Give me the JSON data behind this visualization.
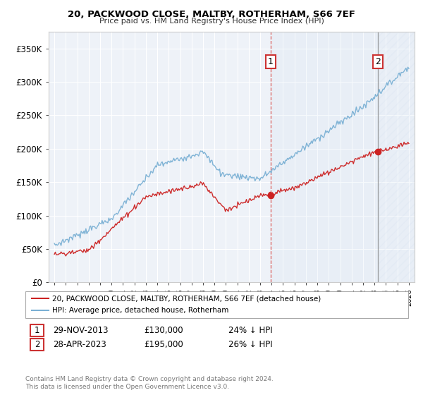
{
  "title": "20, PACKWOOD CLOSE, MALTBY, ROTHERHAM, S66 7EF",
  "subtitle": "Price paid vs. HM Land Registry's House Price Index (HPI)",
  "legend_line1": "20, PACKWOOD CLOSE, MALTBY, ROTHERHAM, S66 7EF (detached house)",
  "legend_line2": "HPI: Average price, detached house, Rotherham",
  "annotation1_date": "29-NOV-2013",
  "annotation1_price": "£130,000",
  "annotation1_hpi": "24% ↓ HPI",
  "annotation2_date": "28-APR-2023",
  "annotation2_price": "£195,000",
  "annotation2_hpi": "26% ↓ HPI",
  "footnote": "Contains HM Land Registry data © Crown copyright and database right 2024.\nThis data is licensed under the Open Government Licence v3.0.",
  "hpi_color": "#7ab0d4",
  "price_color": "#cc2222",
  "dashed_line_color": "#cc3333",
  "ylim": [
    0,
    375000
  ],
  "yticks": [
    0,
    50000,
    100000,
    150000,
    200000,
    250000,
    300000,
    350000
  ],
  "background_color": "#ffffff",
  "plot_bg_color": "#eef2f8",
  "grid_color": "#ffffff",
  "sale1_t": 2013.9,
  "sale2_t": 2023.3,
  "sale1_price": 130000,
  "sale2_price": 195000
}
